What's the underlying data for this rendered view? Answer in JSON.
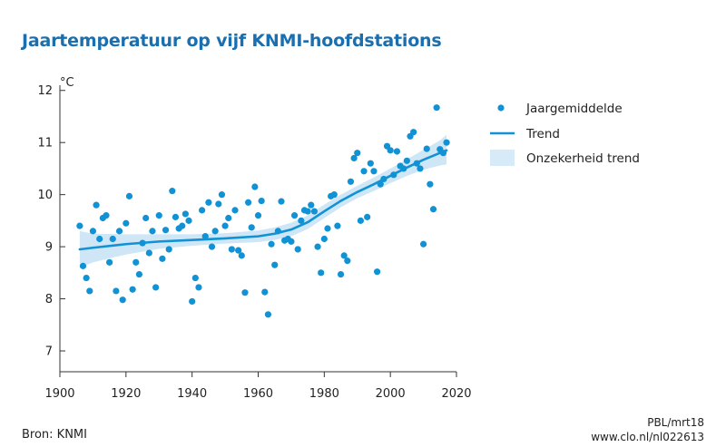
{
  "header": {
    "title": "Jaartemperatuur op vijf KNMI-hoofdstations"
  },
  "footer": {
    "source": "Bron: KNMI",
    "code": "PBL/mrt18",
    "url": "www.clo.nl/nl022613"
  },
  "colors": {
    "title": "#1b6fae",
    "points": "#1192d4",
    "trend": "#1192d4",
    "band": "#cfe6f6",
    "axis": "#333333",
    "legend_band": "#d6eaf8"
  },
  "chart_data": {
    "type": "scatter",
    "title": "",
    "xlabel": "",
    "ylabel": "°C",
    "xlim": [
      1900,
      2020
    ],
    "ylim": [
      6.6,
      12.1
    ],
    "x_ticks": [
      1900,
      1920,
      1940,
      1960,
      1980,
      2000,
      2020
    ],
    "y_ticks": [
      7,
      8,
      9,
      10,
      11,
      12
    ],
    "grid": false,
    "legend": {
      "placement": "right",
      "entries": [
        "Jaargemiddelde",
        "Trend",
        "Onzekerheid trend"
      ]
    },
    "series": [
      {
        "name": "Jaargemiddelde",
        "kind": "scatter",
        "points": [
          [
            1906,
            9.4
          ],
          [
            1907,
            8.63
          ],
          [
            1908,
            8.4
          ],
          [
            1909,
            8.15
          ],
          [
            1910,
            9.3
          ],
          [
            1911,
            9.8
          ],
          [
            1912,
            9.15
          ],
          [
            1913,
            9.55
          ],
          [
            1914,
            9.6
          ],
          [
            1915,
            8.7
          ],
          [
            1916,
            9.15
          ],
          [
            1917,
            8.15
          ],
          [
            1918,
            9.3
          ],
          [
            1919,
            7.98
          ],
          [
            1920,
            9.45
          ],
          [
            1921,
            9.97
          ],
          [
            1922,
            8.18
          ],
          [
            1923,
            8.7
          ],
          [
            1924,
            8.47
          ],
          [
            1925,
            9.07
          ],
          [
            1926,
            9.55
          ],
          [
            1927,
            8.88
          ],
          [
            1928,
            9.3
          ],
          [
            1929,
            8.22
          ],
          [
            1930,
            9.6
          ],
          [
            1931,
            8.77
          ],
          [
            1932,
            9.32
          ],
          [
            1933,
            8.95
          ],
          [
            1934,
            10.07
          ],
          [
            1935,
            9.57
          ],
          [
            1936,
            9.35
          ],
          [
            1937,
            9.4
          ],
          [
            1938,
            9.63
          ],
          [
            1939,
            9.5
          ],
          [
            1940,
            7.95
          ],
          [
            1941,
            8.4
          ],
          [
            1942,
            8.22
          ],
          [
            1943,
            9.7
          ],
          [
            1944,
            9.2
          ],
          [
            1945,
            9.85
          ],
          [
            1946,
            9.0
          ],
          [
            1947,
            9.3
          ],
          [
            1948,
            9.82
          ],
          [
            1949,
            10.0
          ],
          [
            1950,
            9.4
          ],
          [
            1951,
            9.55
          ],
          [
            1952,
            8.95
          ],
          [
            1953,
            9.7
          ],
          [
            1954,
            8.93
          ],
          [
            1955,
            8.83
          ],
          [
            1956,
            8.12
          ],
          [
            1957,
            9.85
          ],
          [
            1958,
            9.37
          ],
          [
            1959,
            10.15
          ],
          [
            1960,
            9.6
          ],
          [
            1961,
            9.88
          ],
          [
            1962,
            8.13
          ],
          [
            1963,
            7.7
          ],
          [
            1964,
            9.05
          ],
          [
            1965,
            8.65
          ],
          [
            1966,
            9.3
          ],
          [
            1967,
            9.87
          ],
          [
            1968,
            9.12
          ],
          [
            1969,
            9.15
          ],
          [
            1970,
            9.1
          ],
          [
            1971,
            9.6
          ],
          [
            1972,
            8.95
          ],
          [
            1973,
            9.5
          ],
          [
            1974,
            9.7
          ],
          [
            1975,
            9.68
          ],
          [
            1976,
            9.8
          ],
          [
            1977,
            9.68
          ],
          [
            1978,
            9.0
          ],
          [
            1979,
            8.5
          ],
          [
            1980,
            9.15
          ],
          [
            1981,
            9.35
          ],
          [
            1982,
            9.97
          ],
          [
            1983,
            10.0
          ],
          [
            1984,
            9.4
          ],
          [
            1985,
            8.47
          ],
          [
            1986,
            8.83
          ],
          [
            1987,
            8.73
          ],
          [
            1988,
            10.25
          ],
          [
            1989,
            10.7
          ],
          [
            1990,
            10.8
          ],
          [
            1991,
            9.5
          ],
          [
            1992,
            10.45
          ],
          [
            1993,
            9.57
          ],
          [
            1994,
            10.6
          ],
          [
            1995,
            10.45
          ],
          [
            1996,
            8.52
          ],
          [
            1997,
            10.2
          ],
          [
            1998,
            10.3
          ],
          [
            1999,
            10.93
          ],
          [
            2000,
            10.85
          ],
          [
            2001,
            10.38
          ],
          [
            2002,
            10.83
          ],
          [
            2003,
            10.55
          ],
          [
            2004,
            10.5
          ],
          [
            2005,
            10.65
          ],
          [
            2006,
            11.12
          ],
          [
            2007,
            11.2
          ],
          [
            2008,
            10.6
          ],
          [
            2009,
            10.5
          ],
          [
            2010,
            9.05
          ],
          [
            2011,
            10.88
          ],
          [
            2012,
            10.2
          ],
          [
            2013,
            9.72
          ],
          [
            2014,
            11.67
          ],
          [
            2015,
            10.87
          ],
          [
            2016,
            10.8
          ],
          [
            2017,
            11.0
          ]
        ]
      },
      {
        "name": "Trend",
        "kind": "line",
        "points": [
          [
            1906,
            8.95
          ],
          [
            1910,
            8.98
          ],
          [
            1920,
            9.05
          ],
          [
            1930,
            9.1
          ],
          [
            1940,
            9.13
          ],
          [
            1950,
            9.16
          ],
          [
            1960,
            9.2
          ],
          [
            1965,
            9.25
          ],
          [
            1970,
            9.33
          ],
          [
            1975,
            9.47
          ],
          [
            1980,
            9.68
          ],
          [
            1985,
            9.88
          ],
          [
            1990,
            10.05
          ],
          [
            1995,
            10.2
          ],
          [
            2000,
            10.36
          ],
          [
            2005,
            10.52
          ],
          [
            2010,
            10.67
          ],
          [
            2015,
            10.8
          ],
          [
            2017,
            10.85
          ]
        ]
      },
      {
        "name": "Onzekerheid trend",
        "kind": "band",
        "x": [
          1906,
          1910,
          1920,
          1930,
          1940,
          1950,
          1960,
          1965,
          1970,
          1975,
          1980,
          1985,
          1990,
          1995,
          2000,
          2005,
          2010,
          2015,
          2017
        ],
        "low": [
          8.6,
          8.7,
          8.85,
          8.96,
          9.02,
          9.06,
          9.09,
          9.13,
          9.2,
          9.34,
          9.55,
          9.76,
          9.93,
          10.07,
          10.22,
          10.36,
          10.48,
          10.56,
          10.58
        ],
        "high": [
          9.3,
          9.25,
          9.24,
          9.24,
          9.24,
          9.26,
          9.31,
          9.37,
          9.46,
          9.6,
          9.81,
          10.0,
          10.17,
          10.33,
          10.5,
          10.68,
          10.86,
          11.04,
          11.15
        ]
      }
    ]
  }
}
